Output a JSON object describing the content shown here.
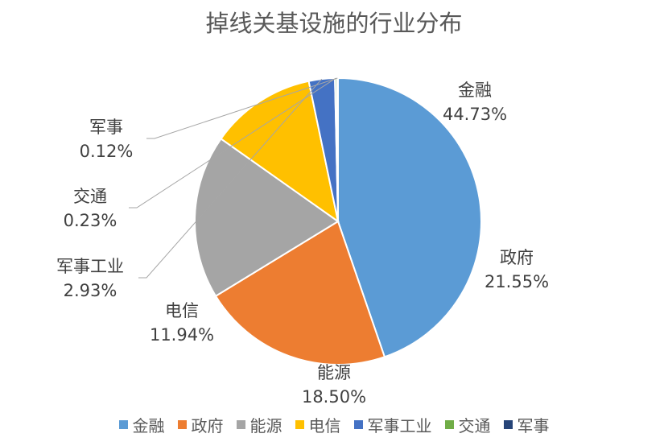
{
  "chart_data": {
    "type": "pie",
    "title": "掉线关基设施的行业分布",
    "categories": [
      "金融",
      "政府",
      "能源",
      "电信",
      "军事工业",
      "交通",
      "军事"
    ],
    "values": [
      44.73,
      21.55,
      18.5,
      11.94,
      2.93,
      0.23,
      0.12
    ],
    "value_labels": [
      "44.73%",
      "21.55%",
      "18.50%",
      "11.94%",
      "2.93%",
      "0.23%",
      "0.12%"
    ],
    "colors": [
      "#5B9BD5",
      "#ED7D31",
      "#A5A5A5",
      "#FFC000",
      "#4472C4",
      "#70AD47",
      "#264478"
    ],
    "legend": "bottom"
  }
}
